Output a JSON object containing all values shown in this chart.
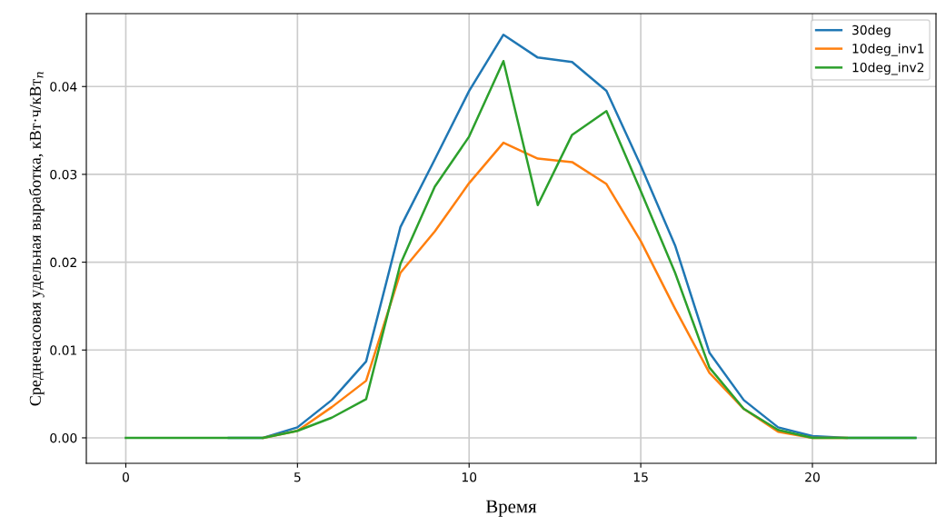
{
  "chart_data": {
    "type": "line",
    "xlabel": "Время",
    "ylabel": "Среднечасовая удельная выработка, кВт·ч/кВт$_{п}$",
    "x": [
      0,
      1,
      2,
      3,
      4,
      5,
      6,
      7,
      8,
      9,
      10,
      11,
      12,
      13,
      14,
      15,
      16,
      17,
      18,
      19,
      20,
      21,
      22,
      23
    ],
    "series": [
      {
        "name": "30deg",
        "color": "#1f77b4",
        "values": [
          null,
          null,
          null,
          0,
          0,
          0.0012,
          0.0043,
          0.0087,
          0.024,
          0.0317,
          0.0395,
          0.0459,
          0.0433,
          0.0428,
          0.0395,
          0.031,
          0.0219,
          0.0097,
          0.0043,
          0.0012,
          0.0002,
          0,
          0,
          0
        ]
      },
      {
        "name": "10deg_inv1",
        "color": "#ff7f0e",
        "values": [
          null,
          null,
          null,
          null,
          0,
          0.0008,
          0.0035,
          0.0065,
          0.0188,
          0.0235,
          0.029,
          0.0336,
          0.0318,
          0.0314,
          0.0289,
          0.0224,
          0.0147,
          0.0074,
          0.0033,
          0.0007,
          0,
          0,
          null,
          null
        ]
      },
      {
        "name": "10deg_inv2",
        "color": "#2ca02c",
        "values": [
          0,
          0,
          0,
          0,
          0,
          0.0008,
          0.0023,
          0.0044,
          0.0198,
          0.0286,
          0.0343,
          0.0429,
          0.0265,
          0.0345,
          0.0372,
          0.0281,
          0.0188,
          0.008,
          0.0033,
          0.0009,
          0,
          0,
          0,
          0
        ]
      }
    ],
    "xlim": [
      -1.15,
      23.6
    ],
    "ylim": [
      -0.0029,
      0.0483
    ],
    "xticks": [
      0,
      5,
      10,
      15,
      20
    ],
    "yticks": [
      {
        "value": 0,
        "label": "0.00"
      },
      {
        "value": 0.01,
        "label": "0.01"
      },
      {
        "value": 0.02,
        "label": "0.02"
      },
      {
        "value": 0.03,
        "label": "0.03"
      },
      {
        "value": 0.04,
        "label": "0.04"
      }
    ],
    "grid": true,
    "legend": "top right",
    "marker": "none",
    "line_style": "solid"
  }
}
